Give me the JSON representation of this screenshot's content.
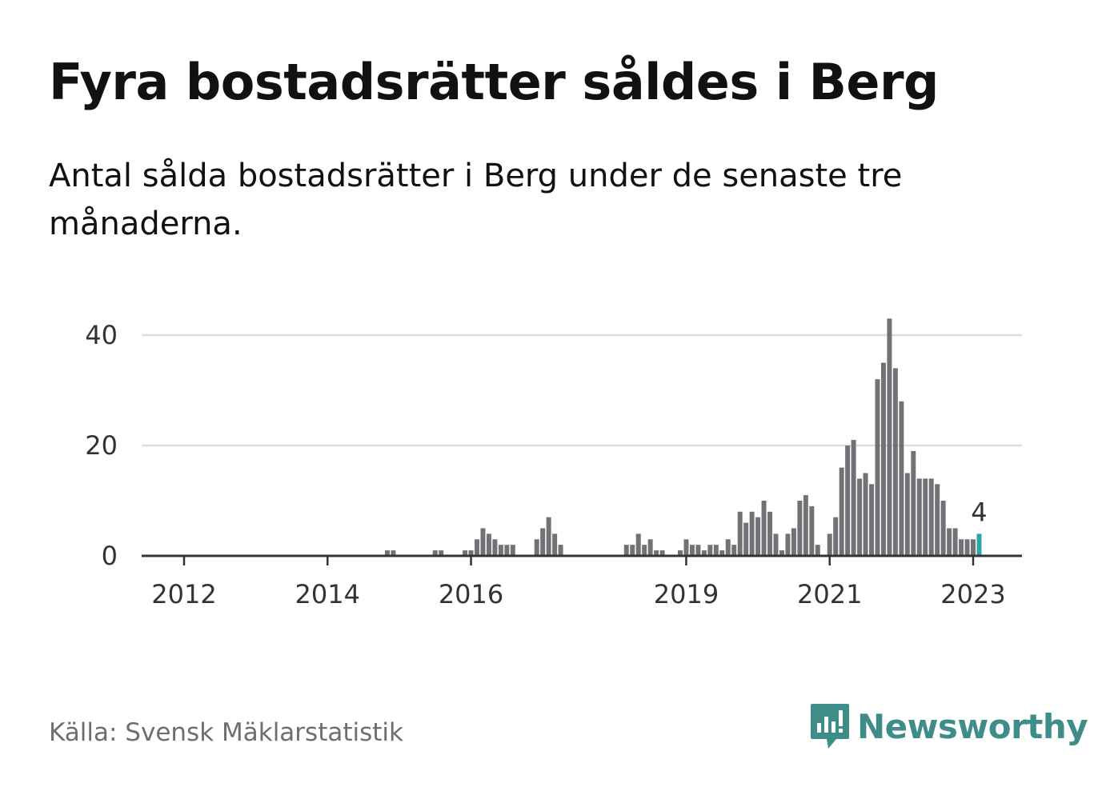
{
  "title": "Fyra bostadsrätter såldes i Berg",
  "subtitle": "Antal sålda bostadsrätter i Berg under de senaste tre månaderna.",
  "source": "Källa: Svensk Mäklarstatistik",
  "brand": "Newsworthy",
  "colors": {
    "bar": "#727176",
    "highlight": "#2ba6a0",
    "grid": "#dddddd",
    "axis": "#333333",
    "brand": "#3f8d88"
  },
  "chart_data": {
    "type": "bar",
    "x_start": "2011-09",
    "x_end": "2023-02",
    "ylim": [
      0,
      43
    ],
    "yticks": [
      0,
      20,
      40
    ],
    "xticks": [
      {
        "label": "2012",
        "month": "2012-01"
      },
      {
        "label": "2014",
        "month": "2014-01"
      },
      {
        "label": "2016",
        "month": "2016-01"
      },
      {
        "label": "2019",
        "month": "2019-01"
      },
      {
        "label": "2021",
        "month": "2021-01"
      },
      {
        "label": "2023",
        "month": "2023-01"
      }
    ],
    "highlight": {
      "month": "2023-02",
      "value": 4,
      "label": "4"
    },
    "values": [
      {
        "month": "2014-11",
        "value": 1
      },
      {
        "month": "2014-12",
        "value": 1
      },
      {
        "month": "2015-07",
        "value": 1
      },
      {
        "month": "2015-08",
        "value": 1
      },
      {
        "month": "2015-12",
        "value": 1
      },
      {
        "month": "2016-01",
        "value": 1
      },
      {
        "month": "2016-02",
        "value": 3
      },
      {
        "month": "2016-03",
        "value": 5
      },
      {
        "month": "2016-04",
        "value": 4
      },
      {
        "month": "2016-05",
        "value": 3
      },
      {
        "month": "2016-06",
        "value": 2
      },
      {
        "month": "2016-07",
        "value": 2
      },
      {
        "month": "2016-08",
        "value": 2
      },
      {
        "month": "2016-12",
        "value": 3
      },
      {
        "month": "2017-01",
        "value": 5
      },
      {
        "month": "2017-02",
        "value": 7
      },
      {
        "month": "2017-03",
        "value": 4
      },
      {
        "month": "2017-04",
        "value": 2
      },
      {
        "month": "2018-03",
        "value": 2
      },
      {
        "month": "2018-04",
        "value": 2
      },
      {
        "month": "2018-05",
        "value": 4
      },
      {
        "month": "2018-06",
        "value": 2
      },
      {
        "month": "2018-07",
        "value": 3
      },
      {
        "month": "2018-08",
        "value": 1
      },
      {
        "month": "2018-09",
        "value": 1
      },
      {
        "month": "2018-12",
        "value": 1
      },
      {
        "month": "2019-01",
        "value": 3
      },
      {
        "month": "2019-02",
        "value": 2
      },
      {
        "month": "2019-03",
        "value": 2
      },
      {
        "month": "2019-04",
        "value": 1
      },
      {
        "month": "2019-05",
        "value": 2
      },
      {
        "month": "2019-06",
        "value": 2
      },
      {
        "month": "2019-07",
        "value": 1
      },
      {
        "month": "2019-08",
        "value": 3
      },
      {
        "month": "2019-09",
        "value": 2
      },
      {
        "month": "2019-10",
        "value": 8
      },
      {
        "month": "2019-11",
        "value": 6
      },
      {
        "month": "2019-12",
        "value": 8
      },
      {
        "month": "2020-01",
        "value": 7
      },
      {
        "month": "2020-02",
        "value": 10
      },
      {
        "month": "2020-03",
        "value": 8
      },
      {
        "month": "2020-04",
        "value": 4
      },
      {
        "month": "2020-05",
        "value": 1
      },
      {
        "month": "2020-06",
        "value": 4
      },
      {
        "month": "2020-07",
        "value": 5
      },
      {
        "month": "2020-08",
        "value": 10
      },
      {
        "month": "2020-09",
        "value": 11
      },
      {
        "month": "2020-10",
        "value": 9
      },
      {
        "month": "2020-11",
        "value": 2
      },
      {
        "month": "2021-01",
        "value": 4
      },
      {
        "month": "2021-02",
        "value": 7
      },
      {
        "month": "2021-03",
        "value": 16
      },
      {
        "month": "2021-04",
        "value": 20
      },
      {
        "month": "2021-05",
        "value": 21
      },
      {
        "month": "2021-06",
        "value": 14
      },
      {
        "month": "2021-07",
        "value": 15
      },
      {
        "month": "2021-08",
        "value": 13
      },
      {
        "month": "2021-09",
        "value": 32
      },
      {
        "month": "2021-10",
        "value": 35
      },
      {
        "month": "2021-11",
        "value": 43
      },
      {
        "month": "2021-12",
        "value": 34
      },
      {
        "month": "2022-01",
        "value": 28
      },
      {
        "month": "2022-02",
        "value": 15
      },
      {
        "month": "2022-03",
        "value": 19
      },
      {
        "month": "2022-04",
        "value": 14
      },
      {
        "month": "2022-05",
        "value": 14
      },
      {
        "month": "2022-06",
        "value": 14
      },
      {
        "month": "2022-07",
        "value": 13
      },
      {
        "month": "2022-08",
        "value": 10
      },
      {
        "month": "2022-09",
        "value": 5
      },
      {
        "month": "2022-10",
        "value": 5
      },
      {
        "month": "2022-11",
        "value": 3
      },
      {
        "month": "2022-12",
        "value": 3
      },
      {
        "month": "2023-01",
        "value": 3
      },
      {
        "month": "2023-02",
        "value": 4
      }
    ]
  }
}
